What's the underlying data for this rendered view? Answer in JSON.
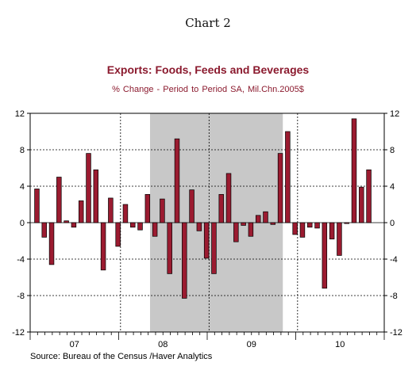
{
  "page": {
    "title": "Chart 2"
  },
  "chart_data": {
    "type": "bar",
    "title": "Exports: Foods, Feeds and Beverages",
    "subtitle": "% Change - Period to Period     SA, Mil.Chn.2005$",
    "xlabel": "",
    "ylabel": "",
    "ylim": [
      -12,
      12
    ],
    "yticks": [
      12,
      8,
      4,
      0,
      -4,
      -8,
      -12
    ],
    "ytick_labels": [
      "12",
      "8",
      "4",
      "0",
      "-4",
      "-8",
      "-12"
    ],
    "grid": true,
    "legend": "none",
    "bar_color": "#9b1b30",
    "shade_color": "#c8c8c8",
    "year_labels": [
      "07",
      "08",
      "09",
      "10"
    ],
    "shaded_region": {
      "start_index": 16,
      "end_index": 34
    },
    "series": [
      {
        "values": [
          3.7,
          -1.6,
          -4.6,
          5.0,
          0.2,
          -0.5,
          2.4,
          7.6,
          5.8,
          -5.2,
          2.7,
          -2.6,
          2.0,
          -0.5,
          -0.8,
          3.1,
          -1.5,
          2.6,
          -5.6,
          9.2,
          -8.3,
          3.6,
          -0.9,
          -3.9,
          -5.6,
          3.1,
          5.4,
          -2.1,
          -0.3,
          -1.5,
          0.8,
          1.2,
          -0.2,
          7.6,
          10.0,
          -1.3,
          -1.6,
          -0.5,
          -0.6,
          -7.2,
          -1.8,
          -3.6,
          -0.1,
          11.4,
          3.9,
          5.8
        ]
      }
    ]
  },
  "source": "Source:  Bureau of the Census /Haver Analytics"
}
